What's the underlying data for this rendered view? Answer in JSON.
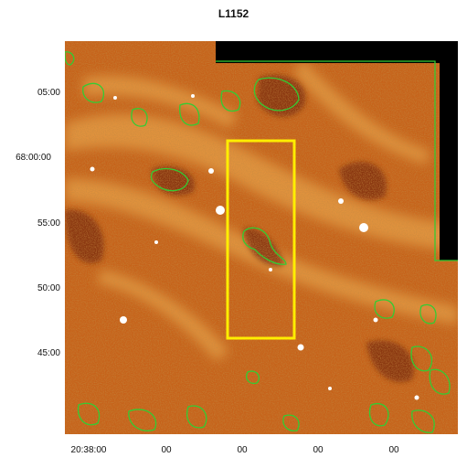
{
  "figure": {
    "title": "L1152",
    "y_tick_labels": [
      "05:00",
      "68:00:00",
      "55:00",
      "50:00",
      "45:00"
    ],
    "x_tick_labels": [
      "20:38:00",
      "00",
      "00",
      "00",
      "00"
    ],
    "colors": {
      "background": "#c6621a",
      "filament": "#e9a24a",
      "dark_cloud": "#7a2c0e",
      "contour": "#33cc33",
      "box": "#ffee00",
      "blank": "#000000",
      "star": "#ffffff"
    }
  }
}
